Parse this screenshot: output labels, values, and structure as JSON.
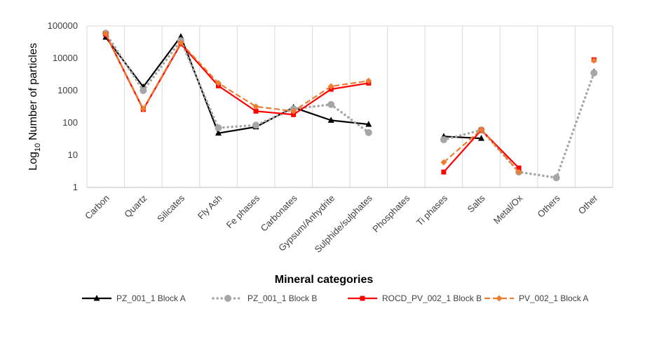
{
  "chart_data": {
    "type": "line",
    "xlabel": "Mineral categories",
    "ylabel": "Number of particles",
    "ylabel_prefix": "Log",
    "ylabel_sub": "10",
    "yscale": "log10",
    "ylim": [
      1,
      100000
    ],
    "yticks": [
      {
        "value": 1,
        "label": "1"
      },
      {
        "value": 10,
        "label": "10"
      },
      {
        "value": 100,
        "label": "100"
      },
      {
        "value": 1000,
        "label": "1000"
      },
      {
        "value": 10000,
        "label": "10000"
      },
      {
        "value": 100000,
        "label": "100000"
      }
    ],
    "grid": "vertical",
    "legend_position": "bottom",
    "categories": [
      "Carbon",
      "Quartz",
      "Silicates",
      "Fly Ash",
      "Fe phases",
      "Carbonates",
      "Gypsum/Anhydrite",
      "Sulphide/sulphates",
      "Phosphates",
      "Ti phases",
      "Salts",
      "Metal/Ox",
      "Others",
      "Other"
    ],
    "series": [
      {
        "name": "PZ_001_1 Block A",
        "color": "#000000",
        "line": "solid",
        "marker": "triangle",
        "values": [
          45000,
          1300,
          47000,
          48,
          75,
          300,
          120,
          90,
          null,
          38,
          33,
          null,
          null,
          3800
        ]
      },
      {
        "name": "PZ_001_1 Block B",
        "color": "#a6a6a6",
        "line": "dotted",
        "marker": "circle",
        "values": [
          60000,
          1000,
          35000,
          70,
          85,
          270,
          370,
          50,
          null,
          30,
          60,
          3,
          2,
          3500
        ]
      },
      {
        "name": "ROCD_PV_002_1 Block B",
        "color": "#ff0000",
        "line": "solid",
        "marker": "square",
        "values": [
          55000,
          260,
          28000,
          1400,
          230,
          180,
          1100,
          1700,
          null,
          3,
          60,
          4,
          null,
          9000
        ]
      },
      {
        "name": "PV_002_1 Block A",
        "color": "#ed7d31",
        "line": "dashed",
        "marker": "diamond",
        "values": [
          58000,
          270,
          30000,
          1700,
          320,
          230,
          1350,
          2000,
          null,
          6,
          62,
          3,
          null,
          8500
        ]
      }
    ]
  }
}
